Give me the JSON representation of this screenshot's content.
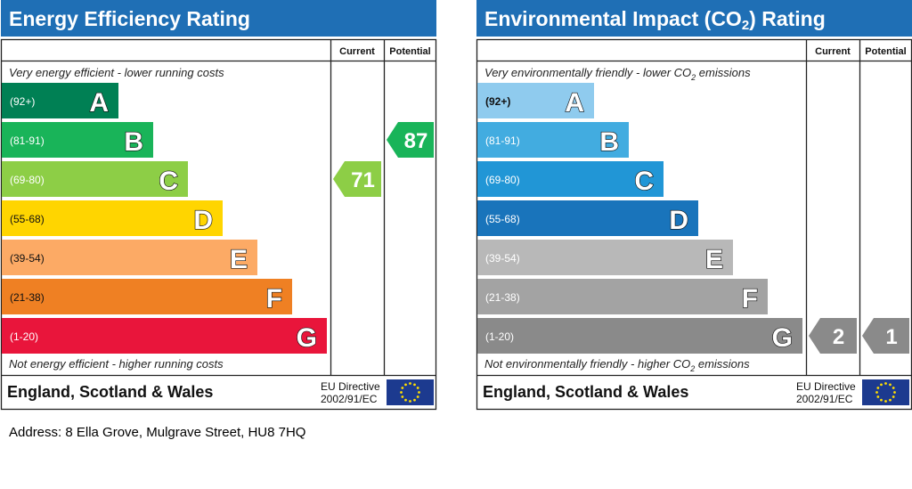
{
  "address": "Address: 8 Ella Grove, Mulgrave Street, HU8 7HQ",
  "chart_data": [
    {
      "type": "bar",
      "title": "Energy Efficiency Rating",
      "title_sub": "",
      "column_current": "Current",
      "column_potential": "Potential",
      "top_note": "Very energy efficient - lower running costs",
      "top_note_sub": "",
      "top_note_tail": "",
      "bottom_note": "Not energy efficient - higher running costs",
      "bottom_note_sub": "",
      "bottom_note_tail": "",
      "footer_region": "England, Scotland & Wales",
      "footer_directive_1": "EU Directive",
      "footer_directive_2": "2002/91/EC",
      "bands": [
        {
          "letter": "A",
          "range": "(92+)",
          "color": "#008054"
        },
        {
          "letter": "B",
          "range": "(81-91)",
          "color": "#19b459"
        },
        {
          "letter": "C",
          "range": "(69-80)",
          "color": "#8dce46"
        },
        {
          "letter": "D",
          "range": "(55-68)",
          "color": "#ffd500"
        },
        {
          "letter": "E",
          "range": "(39-54)",
          "color": "#fcaa65"
        },
        {
          "letter": "F",
          "range": "(21-38)",
          "color": "#ef8023"
        },
        {
          "letter": "G",
          "range": "(1-20)",
          "color": "#e9153b"
        }
      ],
      "current": {
        "value": 71,
        "band": "C",
        "color": "#8dce46"
      },
      "potential": {
        "value": 87,
        "band": "B",
        "color": "#19b459"
      }
    },
    {
      "type": "bar",
      "title": "Environmental Impact (CO",
      "title_sub": "2",
      "title_tail": ") Rating",
      "column_current": "Current",
      "column_potential": "Potential",
      "top_note": "Very environmentally friendly - lower CO",
      "top_note_sub": "2",
      "top_note_tail": " emissions",
      "bottom_note": "Not environmentally friendly - higher CO",
      "bottom_note_sub": "2",
      "bottom_note_tail": " emissions",
      "footer_region": "England, Scotland & Wales",
      "footer_directive_1": "EU Directive",
      "footer_directive_2": "2002/91/EC",
      "bands": [
        {
          "letter": "A",
          "range": "(92+)",
          "color": "#8fcbee"
        },
        {
          "letter": "B",
          "range": "(81-91)",
          "color": "#42ace0"
        },
        {
          "letter": "C",
          "range": "(69-80)",
          "color": "#2196d6"
        },
        {
          "letter": "D",
          "range": "(55-68)",
          "color": "#1974bb"
        },
        {
          "letter": "E",
          "range": "(39-54)",
          "color": "#b8b8b8"
        },
        {
          "letter": "F",
          "range": "(21-38)",
          "color": "#a3a3a3"
        },
        {
          "letter": "G",
          "range": "(1-20)",
          "color": "#8a8a8a"
        }
      ],
      "current": {
        "value": 2,
        "band": "G",
        "color": "#8a8a8a"
      },
      "potential": {
        "value": 1,
        "band": "G",
        "color": "#8a8a8a"
      }
    }
  ],
  "colors": {
    "header_blue": "#1f6fb5",
    "eu_flag_blue": "#1c3a8f",
    "eu_star_yellow": "#ffde00"
  }
}
